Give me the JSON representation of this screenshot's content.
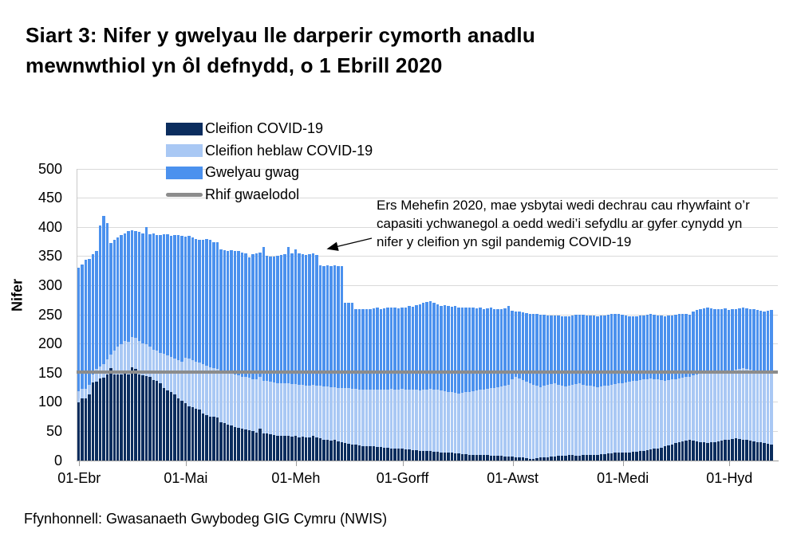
{
  "title": {
    "line1": "Siart 3: Nifer y gwelyau lle darperir cymorth anadlu",
    "line2": "mewnwthiol yn ôl defnydd, o 1 Ebrill 2020"
  },
  "legend": {
    "items": [
      {
        "label": "Cleifion COVID-19",
        "color": "#0b2d5e",
        "type": "box"
      },
      {
        "label": "Cleifion heblaw COVID-19",
        "color": "#a9c8f4",
        "type": "box"
      },
      {
        "label": "Gwelyau gwag",
        "color": "#4b91ee",
        "type": "box"
      },
      {
        "label": "Rhif gwaelodol",
        "color": "#8c8c8c",
        "type": "line"
      }
    ]
  },
  "annotation": {
    "text": "Ers Mehefin 2020, mae ysbytai wedi dechrau cau rhywfaint o’r capasiti ychwanegol a oedd wedi’i sefydlu ar gyfer cynydd yn nifer y cleifion yn sgil pandemig COVID-19"
  },
  "source": "Ffynhonnell: Gwasanaeth Gwybodeg GIG Cymru (NWIS)",
  "chart_data": {
    "type": "bar",
    "stacked": true,
    "title": "Siart 3: Nifer y gwelyau lle darperir cymorth anadlu mewnwthiol yn ôl defnydd, o 1 Ebrill 2020",
    "ylabel": "Nifer",
    "ylim": [
      0,
      500
    ],
    "yticks": [
      0,
      50,
      100,
      150,
      200,
      250,
      300,
      350,
      400,
      450,
      500
    ],
    "grid": "horizontal",
    "legend_position": "top-left-inside",
    "n_days": 196,
    "x_start": "2020-04-01",
    "xticks": [
      {
        "day_index": 0,
        "label": "01-Ebr"
      },
      {
        "day_index": 30,
        "label": "01-Mai"
      },
      {
        "day_index": 61,
        "label": "01-Meh"
      },
      {
        "day_index": 91,
        "label": "01-Gorff"
      },
      {
        "day_index": 122,
        "label": "01-Awst"
      },
      {
        "day_index": 153,
        "label": "01-Medi"
      },
      {
        "day_index": 183,
        "label": "01-Hyd"
      }
    ],
    "baseline": {
      "label": "Rhif gwaelodol",
      "value": 152,
      "color": "#8c8c8c"
    },
    "series": [
      {
        "name": "Cleifion COVID-19",
        "color": "#0b2d5e",
        "stack_order": "bottom",
        "values": [
          100,
          107,
          107,
          114,
          134,
          135,
          141,
          142,
          148,
          158,
          148,
          147,
          148,
          149,
          147,
          160,
          157,
          148,
          146,
          145,
          143,
          138,
          136,
          132,
          125,
          120,
          117,
          114,
          107,
          102,
          98,
          93,
          92,
          89,
          88,
          80,
          78,
          75,
          75,
          74,
          66,
          64,
          62,
          60,
          58,
          56,
          55,
          53,
          52,
          50,
          48,
          55,
          47,
          46,
          45,
          44,
          43,
          43,
          42,
          42,
          41,
          42,
          40,
          41,
          40,
          39,
          42,
          40,
          38,
          36,
          35,
          34,
          35,
          33,
          32,
          30,
          29,
          28,
          27,
          26,
          25,
          25,
          24,
          24,
          23,
          23,
          22,
          22,
          21,
          21,
          20,
          20,
          19,
          19,
          18,
          18,
          17,
          17,
          16,
          16,
          15,
          15,
          14,
          14,
          13,
          13,
          12,
          12,
          11,
          11,
          10,
          10,
          10,
          9,
          9,
          9,
          8,
          8,
          8,
          8,
          7,
          7,
          7,
          6,
          6,
          5,
          4,
          3,
          3,
          4,
          5,
          6,
          6,
          7,
          7,
          8,
          8,
          8,
          9,
          9,
          8,
          8,
          9,
          9,
          10,
          10,
          10,
          11,
          11,
          12,
          12,
          13,
          13,
          13,
          14,
          14,
          15,
          15,
          16,
          17,
          18,
          19,
          20,
          21,
          22,
          24,
          26,
          28,
          30,
          32,
          33,
          34,
          35,
          34,
          33,
          32,
          31,
          30,
          31,
          32,
          33,
          34,
          35,
          36,
          37,
          38,
          37,
          36,
          35,
          34,
          33,
          32,
          31,
          30,
          29,
          28
        ]
      },
      {
        "name": "Cleifion heblaw COVID-19",
        "color": "#a9c8f4",
        "stack_order": "middle",
        "values": [
          19,
          16,
          16,
          16,
          14,
          22,
          20,
          24,
          25,
          24,
          41,
          49,
          52,
          56,
          56,
          52,
          53,
          57,
          55,
          55,
          52,
          52,
          52,
          53,
          58,
          60,
          61,
          61,
          65,
          68,
          78,
          82,
          80,
          81,
          80,
          85,
          85,
          85,
          83,
          83,
          89,
          89,
          89,
          90,
          90,
          90,
          89,
          90,
          90,
          90,
          91,
          88,
          90,
          90,
          90,
          90,
          90,
          90,
          90,
          90,
          90,
          89,
          90,
          89,
          89,
          90,
          88,
          89,
          90,
          91,
          92,
          92,
          91,
          92,
          93,
          94,
          95,
          95,
          96,
          96,
          97,
          96,
          97,
          98,
          99,
          98,
          99,
          100,
          102,
          101,
          102,
          103,
          103,
          102,
          104,
          103,
          103,
          104,
          106,
          107,
          107,
          106,
          106,
          105,
          105,
          104,
          104,
          103,
          105,
          106,
          108,
          109,
          110,
          112,
          113,
          114,
          116,
          117,
          118,
          119,
          121,
          123,
          133,
          137,
          135,
          133,
          131,
          129,
          127,
          124,
          121,
          122,
          124,
          124,
          125,
          122,
          120,
          119,
          119,
          121,
          123,
          124,
          121,
          120,
          118,
          117,
          116,
          116,
          117,
          117,
          118,
          118,
          119,
          120,
          120,
          121,
          121,
          122,
          122,
          122,
          122,
          122,
          120,
          118,
          116,
          113,
          112,
          111,
          110,
          109,
          109,
          109,
          109,
          112,
          115,
          118,
          121,
          124,
          122,
          120,
          118,
          118,
          118,
          118,
          118,
          118,
          120,
          122,
          122,
          122,
          122,
          122,
          122,
          122,
          124,
          126
        ]
      },
      {
        "name": "Gwelyau gwag",
        "color": "#4b91ee",
        "stack_order": "top",
        "values": [
          211,
          213,
          221,
          216,
          206,
          203,
          242,
          254,
          234,
          191,
          189,
          186,
          187,
          185,
          190,
          183,
          183,
          187,
          189,
          200,
          193,
          200,
          198,
          202,
          205,
          208,
          207,
          212,
          214,
          215,
          208,
          210,
          211,
          210,
          211,
          213,
          217,
          218,
          217,
          217,
          207,
          208,
          209,
          211,
          212,
          213,
          213,
          212,
          206,
          214,
          216,
          213,
          229,
          215,
          215,
          216,
          218,
          220,
          222,
          234,
          224,
          231,
          225,
          224,
          224,
          225,
          225,
          223,
          207,
          207,
          208,
          208,
          209,
          209,
          208,
          147,
          147,
          148,
          137,
          137,
          138,
          138,
          139,
          139,
          140,
          139,
          140,
          140,
          140,
          140,
          139,
          139,
          141,
          144,
          142,
          145,
          148,
          149,
          150,
          150,
          148,
          147,
          145,
          147,
          147,
          147,
          149,
          148,
          146,
          145,
          145,
          143,
          141,
          141,
          138,
          138,
          138,
          135,
          133,
          133,
          133,
          135,
          117,
          113,
          114,
          116,
          118,
          120,
          122,
          123,
          124,
          122,
          119,
          118,
          116,
          118,
          120,
          120,
          120,
          119,
          119,
          118,
          120,
          120,
          120,
          121,
          121,
          121,
          121,
          121,
          121,
          121,
          120,
          117,
          115,
          113,
          112,
          110,
          110,
          110,
          110,
          110,
          110,
          110,
          110,
          110,
          110,
          110,
          110,
          110,
          110,
          108,
          106,
          110,
          110,
          110,
          109,
          108,
          108,
          108,
          108,
          108,
          108,
          104,
          104,
          104,
          104,
          104,
          104,
          104,
          104,
          104,
          104,
          104,
          104,
          104
        ]
      }
    ]
  },
  "colors": {
    "gridline": "#d9d9d9",
    "axis": "#9b9b9b",
    "baseline": "#8c8c8c"
  }
}
